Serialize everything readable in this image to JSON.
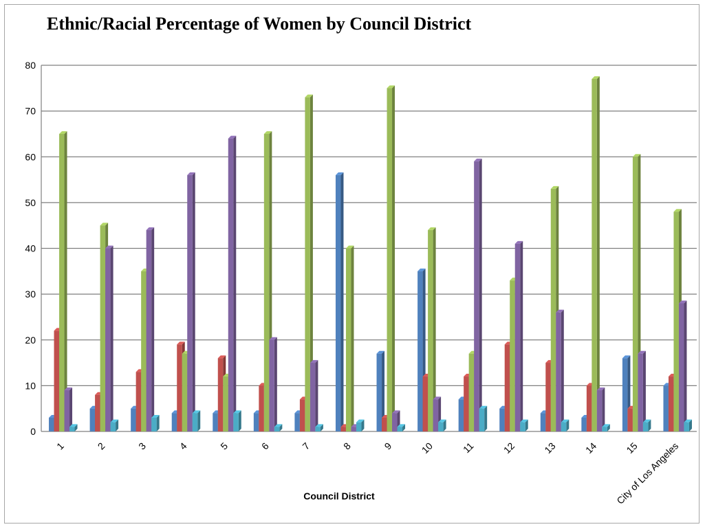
{
  "chart_data": {
    "type": "bar",
    "title": "Ethnic/Racial Percentage of Women by Council District",
    "xlabel": "Council District",
    "ylabel": "",
    "ylim": [
      0,
      80
    ],
    "yticks": [
      0,
      10,
      20,
      30,
      40,
      50,
      60,
      70,
      80
    ],
    "grid": true,
    "legend": "none",
    "categories": [
      "1",
      "2",
      "3",
      "4",
      "5",
      "6",
      "7",
      "8",
      "9",
      "10",
      "11",
      "12",
      "13",
      "14",
      "15",
      "City of Los Angeles"
    ],
    "series": [
      {
        "color": "#4f81bd",
        "values": [
          3,
          5,
          5,
          4,
          4,
          4,
          4,
          56,
          17,
          35,
          7,
          5,
          4,
          3,
          16,
          10
        ]
      },
      {
        "color": "#c0504d",
        "values": [
          22,
          8,
          13,
          19,
          16,
          10,
          7,
          1,
          3,
          12,
          12,
          19,
          15,
          10,
          5,
          12
        ]
      },
      {
        "color": "#9bbb59",
        "values": [
          65,
          45,
          35,
          17,
          12,
          65,
          73,
          40,
          75,
          44,
          17,
          33,
          53,
          77,
          60,
          48
        ]
      },
      {
        "color": "#8064a2",
        "values": [
          9,
          40,
          44,
          56,
          64,
          20,
          15,
          1,
          4,
          7,
          59,
          41,
          26,
          9,
          17,
          28
        ]
      },
      {
        "color": "#4bacc6",
        "values": [
          1,
          2,
          3,
          4,
          4,
          1,
          1,
          2,
          1,
          2,
          5,
          2,
          2,
          1,
          2,
          2
        ]
      }
    ]
  }
}
